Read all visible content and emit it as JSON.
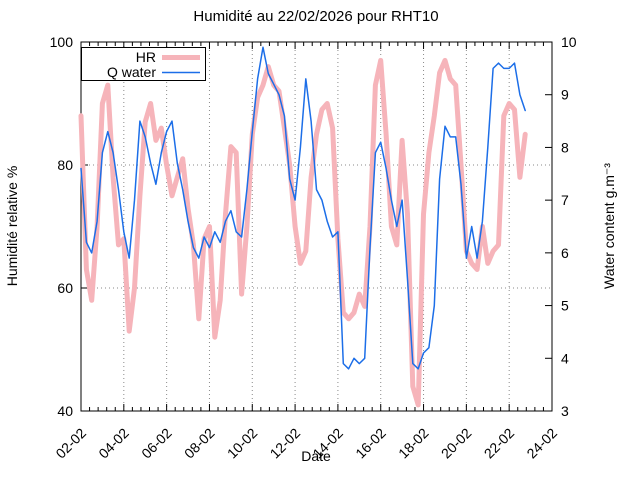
{
  "chart_data": {
    "type": "line",
    "title": "Humidité au 22/02/2026 pour RHT10",
    "xlabel": "Date",
    "ylabel_left": "Humidité relative %",
    "ylabel_right": "Water content g.m⁻³",
    "grid": "dotted, vertical at 2-day ticks, horizontal at HR 60 and 80",
    "legend": {
      "position": "top-left",
      "entries": [
        {
          "label": "HR",
          "color": "#f6b4ba",
          "line_width": 5
        },
        {
          "label": "Q water",
          "color": "#1c6ee8",
          "line_width": 1.5
        }
      ]
    },
    "x_axis": {
      "unit": "days since 02-02",
      "range_days": [
        0,
        22
      ],
      "tick_days": [
        0,
        2,
        4,
        6,
        8,
        10,
        12,
        14,
        16,
        18,
        20,
        22
      ],
      "tick_labels": [
        "02-02",
        "04-02",
        "06-02",
        "08-02",
        "10-02",
        "12-02",
        "14-02",
        "16-02",
        "18-02",
        "20-02",
        "22-02",
        "24-02"
      ],
      "minor_tick_interval_days": 0.4
    },
    "y_left": {
      "range": [
        40,
        100
      ],
      "ticks": [
        40,
        60,
        80,
        100
      ],
      "gridlines": [
        60,
        80
      ]
    },
    "y_right": {
      "range": [
        3,
        10
      ],
      "ticks": [
        3,
        4,
        5,
        6,
        7,
        8,
        9,
        10
      ]
    },
    "series": [
      {
        "name": "HR",
        "axis": "left",
        "color": "#f6b4ba",
        "line_width": 5,
        "x_start_days": 0,
        "x_step_days": 0.25,
        "values": [
          88,
          63,
          58,
          70,
          90,
          93,
          78,
          67,
          68,
          53,
          60,
          75,
          87,
          90,
          84,
          86,
          80,
          75,
          78,
          81,
          73,
          67,
          55,
          68,
          70,
          52,
          58,
          72,
          83,
          82,
          59,
          70,
          85,
          91,
          93,
          96,
          93,
          92,
          86,
          80,
          70,
          64,
          66,
          78,
          85,
          89,
          90,
          86,
          68,
          56,
          55,
          56,
          59,
          57,
          70,
          93,
          97,
          85,
          70,
          67,
          84,
          72,
          44,
          41,
          72,
          82,
          88,
          95,
          97,
          94,
          93,
          80,
          66,
          64,
          63,
          70,
          64,
          66,
          67,
          88,
          90,
          89,
          78,
          85
        ]
      },
      {
        "name": "Q water",
        "axis": "right",
        "color": "#1c6ee8",
        "line_width": 1.5,
        "x_start_days": 0,
        "x_step_days": 0.25,
        "values": [
          7.6,
          6.2,
          6.0,
          6.6,
          7.9,
          8.3,
          7.9,
          7.2,
          6.4,
          5.9,
          7.0,
          8.5,
          8.2,
          7.7,
          7.3,
          7.9,
          8.3,
          8.5,
          7.7,
          7.2,
          6.6,
          6.1,
          5.9,
          6.3,
          6.1,
          6.4,
          6.2,
          6.6,
          6.8,
          6.4,
          6.3,
          7.2,
          8.3,
          9.3,
          9.9,
          9.4,
          9.2,
          9.0,
          8.6,
          7.4,
          7.0,
          8.0,
          9.3,
          8.5,
          7.2,
          7.0,
          6.6,
          6.3,
          6.4,
          3.9,
          3.8,
          4.0,
          3.9,
          4.0,
          6.1,
          7.9,
          8.1,
          7.6,
          7.0,
          6.5,
          7.0,
          5.5,
          3.9,
          3.8,
          4.1,
          4.2,
          5.0,
          7.4,
          8.4,
          8.2,
          8.2,
          7.3,
          5.9,
          6.5,
          5.9,
          6.6,
          8.0,
          9.5,
          9.6,
          9.5,
          9.5,
          9.6,
          9.0,
          8.7
        ]
      }
    ]
  }
}
